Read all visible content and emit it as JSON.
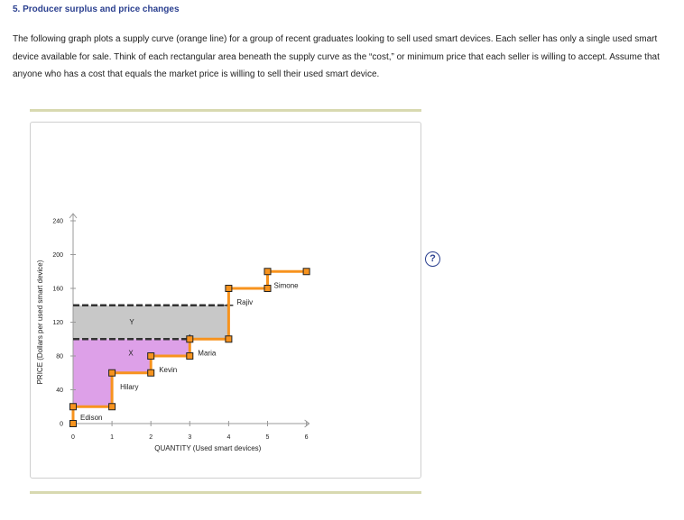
{
  "question": {
    "title": "5. Producer surplus and price changes",
    "body": "The following graph plots a supply curve (orange line) for a group of recent graduates looking to sell used smart devices. Each seller has only a single used smart device available for sale. Think of each rectangular area beneath the supply curve as the “cost,” or minimum price that each seller is willing to accept. Assume that anyone who has a cost that equals the market price is willing to sell their used smart device."
  },
  "help_label": "?",
  "colors": {
    "supply": "#f7931e",
    "surplus_purple": "#dda0e8",
    "surplus_gray": "#c8c8c8",
    "price_line": "#333333",
    "marker_fill": "#f7931e",
    "marker_stroke": "#222222"
  },
  "chart_data": {
    "type": "line",
    "xlabel": "QUANTITY (Used smart devices)",
    "ylabel": "PRICE (Dollars per used smart device)",
    "xlim": [
      0,
      6
    ],
    "ylim": [
      0,
      240
    ],
    "xticks": [
      "0",
      "1",
      "2",
      "3",
      "4",
      "5",
      "6"
    ],
    "yticks": [
      "0",
      "40",
      "80",
      "120",
      "160",
      "200",
      "240"
    ],
    "supply_steps": [
      {
        "name": "Edison",
        "q_from": 0,
        "q_to": 1,
        "cost": 20
      },
      {
        "name": "Hilary",
        "q_from": 1,
        "q_to": 2,
        "cost": 60
      },
      {
        "name": "Kevin",
        "q_from": 2,
        "q_to": 3,
        "cost": 80
      },
      {
        "name": "Maria",
        "q_from": 3,
        "q_to": 4,
        "cost": 100
      },
      {
        "name": "Rajiv",
        "q_from": 4,
        "q_to": 5,
        "cost": 160
      },
      {
        "name": "Simone",
        "q_from": 5,
        "q_to": 6,
        "cost": 180
      }
    ],
    "price_lines": [
      {
        "name": "X",
        "price": 100
      },
      {
        "name": "Y",
        "price": 140
      }
    ],
    "shaded_areas": [
      {
        "type": "purple",
        "price_top": 100
      },
      {
        "type": "gray",
        "price_bottom": 100,
        "price_top": 140,
        "q_to": 4
      }
    ]
  }
}
